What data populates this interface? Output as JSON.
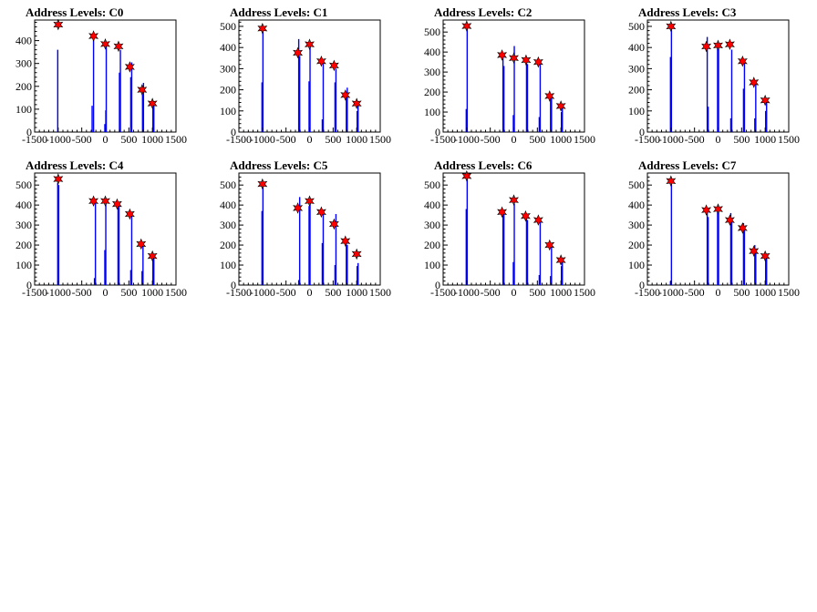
{
  "chart_data": [
    {
      "type": "bar",
      "title": "Address Levels: C0",
      "xlim": [
        -1500,
        1500
      ],
      "ylim": [
        0,
        490
      ],
      "xticks": [
        -1500,
        -1000,
        -500,
        0,
        500,
        1000,
        1500
      ],
      "yticks": [
        0,
        100,
        200,
        300,
        400
      ],
      "peaks": [
        {
          "x": -1000,
          "y": 470
        },
        {
          "x": -250,
          "y": 420
        },
        {
          "x": 0,
          "y": 385
        },
        {
          "x": 280,
          "y": 375
        },
        {
          "x": 520,
          "y": 285
        },
        {
          "x": 780,
          "y": 185
        },
        {
          "x": 1000,
          "y": 125
        }
      ],
      "bins": [
        {
          "x": -1010,
          "y": 360
        },
        {
          "x": -280,
          "y": 115
        },
        {
          "x": -250,
          "y": 410
        },
        {
          "x": -10,
          "y": 35
        },
        {
          "x": 10,
          "y": 95
        },
        {
          "x": 20,
          "y": 375
        },
        {
          "x": 300,
          "y": 260
        },
        {
          "x": 320,
          "y": 360
        },
        {
          "x": 540,
          "y": 240
        },
        {
          "x": 560,
          "y": 305
        },
        {
          "x": 790,
          "y": 165
        },
        {
          "x": 810,
          "y": 215
        },
        {
          "x": 1010,
          "y": 110
        },
        {
          "x": 1030,
          "y": 135
        }
      ]
    },
    {
      "type": "bar",
      "title": "Address Levels: C1",
      "xlim": [
        -1500,
        1500
      ],
      "ylim": [
        0,
        530
      ],
      "xticks": [
        -1500,
        -1000,
        -500,
        0,
        500,
        1000,
        1500
      ],
      "yticks": [
        0,
        100,
        200,
        300,
        400,
        500
      ],
      "peaks": [
        {
          "x": -1000,
          "y": 490
        },
        {
          "x": -250,
          "y": 375
        },
        {
          "x": 0,
          "y": 415
        },
        {
          "x": 250,
          "y": 335
        },
        {
          "x": 520,
          "y": 315
        },
        {
          "x": 760,
          "y": 175
        },
        {
          "x": 1000,
          "y": 135
        }
      ],
      "bins": [
        {
          "x": -1010,
          "y": 235
        },
        {
          "x": -990,
          "y": 480
        },
        {
          "x": -230,
          "y": 440
        },
        {
          "x": -210,
          "y": 360
        },
        {
          "x": -10,
          "y": 240
        },
        {
          "x": 10,
          "y": 420
        },
        {
          "x": 270,
          "y": 60
        },
        {
          "x": 290,
          "y": 335
        },
        {
          "x": 540,
          "y": 235
        },
        {
          "x": 560,
          "y": 300
        },
        {
          "x": 780,
          "y": 165
        },
        {
          "x": 800,
          "y": 210
        },
        {
          "x": 1010,
          "y": 100
        },
        {
          "x": 1030,
          "y": 125
        }
      ]
    },
    {
      "type": "bar",
      "title": "Address Levels: C2",
      "xlim": [
        -1500,
        1500
      ],
      "ylim": [
        0,
        560
      ],
      "xticks": [
        -1500,
        -1000,
        -500,
        0,
        500,
        1000,
        1500
      ],
      "yticks": [
        0,
        100,
        200,
        300,
        400,
        500
      ],
      "peaks": [
        {
          "x": -1000,
          "y": 530
        },
        {
          "x": -250,
          "y": 385
        },
        {
          "x": 0,
          "y": 370
        },
        {
          "x": 260,
          "y": 360
        },
        {
          "x": 520,
          "y": 350
        },
        {
          "x": 760,
          "y": 180
        },
        {
          "x": 1000,
          "y": 130
        }
      ],
      "bins": [
        {
          "x": -1010,
          "y": 115
        },
        {
          "x": -990,
          "y": 520
        },
        {
          "x": -230,
          "y": 380
        },
        {
          "x": -210,
          "y": 330
        },
        {
          "x": -10,
          "y": 85
        },
        {
          "x": 10,
          "y": 430
        },
        {
          "x": 270,
          "y": 370
        },
        {
          "x": 290,
          "y": 340
        },
        {
          "x": 540,
          "y": 75
        },
        {
          "x": 560,
          "y": 340
        },
        {
          "x": 780,
          "y": 165
        },
        {
          "x": 800,
          "y": 175
        },
        {
          "x": 1010,
          "y": 100
        },
        {
          "x": 1030,
          "y": 120
        }
      ]
    },
    {
      "type": "bar",
      "title": "Address Levels: C3",
      "xlim": [
        -1500,
        1500
      ],
      "ylim": [
        0,
        530
      ],
      "xticks": [
        -1500,
        -1000,
        -500,
        0,
        500,
        1000,
        1500
      ],
      "yticks": [
        0,
        100,
        200,
        300,
        400,
        500
      ],
      "peaks": [
        {
          "x": -1000,
          "y": 500
        },
        {
          "x": -250,
          "y": 405
        },
        {
          "x": 0,
          "y": 410
        },
        {
          "x": 250,
          "y": 415
        },
        {
          "x": 520,
          "y": 335
        },
        {
          "x": 760,
          "y": 235
        },
        {
          "x": 1000,
          "y": 150
        }
      ],
      "bins": [
        {
          "x": -1010,
          "y": 355
        },
        {
          "x": -990,
          "y": 490
        },
        {
          "x": -230,
          "y": 450
        },
        {
          "x": -210,
          "y": 120
        },
        {
          "x": -10,
          "y": 400
        },
        {
          "x": 10,
          "y": 395
        },
        {
          "x": 270,
          "y": 65
        },
        {
          "x": 290,
          "y": 390
        },
        {
          "x": 540,
          "y": 205
        },
        {
          "x": 560,
          "y": 330
        },
        {
          "x": 780,
          "y": 65
        },
        {
          "x": 800,
          "y": 225
        },
        {
          "x": 1010,
          "y": 100
        },
        {
          "x": 1030,
          "y": 140
        }
      ]
    },
    {
      "type": "bar",
      "title": "Address Levels: C4",
      "xlim": [
        -1500,
        1500
      ],
      "ylim": [
        0,
        560
      ],
      "xticks": [
        -1500,
        -1000,
        -500,
        0,
        500,
        1000,
        1500
      ],
      "yticks": [
        0,
        100,
        200,
        300,
        400,
        500
      ],
      "peaks": [
        {
          "x": -1000,
          "y": 530
        },
        {
          "x": -250,
          "y": 420
        },
        {
          "x": 0,
          "y": 420
        },
        {
          "x": 250,
          "y": 405
        },
        {
          "x": 520,
          "y": 355
        },
        {
          "x": 760,
          "y": 205
        },
        {
          "x": 1000,
          "y": 145
        }
      ],
      "bins": [
        {
          "x": -1010,
          "y": 510
        },
        {
          "x": -990,
          "y": 500
        },
        {
          "x": -230,
          "y": 35
        },
        {
          "x": -210,
          "y": 415
        },
        {
          "x": -10,
          "y": 175
        },
        {
          "x": 10,
          "y": 410
        },
        {
          "x": 270,
          "y": 390
        },
        {
          "x": 290,
          "y": 400
        },
        {
          "x": 540,
          "y": 75
        },
        {
          "x": 560,
          "y": 360
        },
        {
          "x": 780,
          "y": 70
        },
        {
          "x": 800,
          "y": 200
        },
        {
          "x": 1010,
          "y": 140
        },
        {
          "x": 1030,
          "y": 155
        }
      ]
    },
    {
      "type": "bar",
      "title": "Address Levels: C5",
      "xlim": [
        -1500,
        1500
      ],
      "ylim": [
        0,
        560
      ],
      "xticks": [
        -1500,
        -1000,
        -500,
        0,
        500,
        1000,
        1500
      ],
      "yticks": [
        0,
        100,
        200,
        300,
        400,
        500
      ],
      "peaks": [
        {
          "x": -1000,
          "y": 505
        },
        {
          "x": -250,
          "y": 385
        },
        {
          "x": 0,
          "y": 420
        },
        {
          "x": 250,
          "y": 365
        },
        {
          "x": 520,
          "y": 305
        },
        {
          "x": 760,
          "y": 220
        },
        {
          "x": 1000,
          "y": 155
        }
      ],
      "bins": [
        {
          "x": -1010,
          "y": 370
        },
        {
          "x": -990,
          "y": 515
        },
        {
          "x": -230,
          "y": 25
        },
        {
          "x": -210,
          "y": 440
        },
        {
          "x": -10,
          "y": 395
        },
        {
          "x": 10,
          "y": 415
        },
        {
          "x": 270,
          "y": 210
        },
        {
          "x": 290,
          "y": 355
        },
        {
          "x": 540,
          "y": 100
        },
        {
          "x": 560,
          "y": 355
        },
        {
          "x": 780,
          "y": 210
        },
        {
          "x": 800,
          "y": 200
        },
        {
          "x": 1010,
          "y": 95
        },
        {
          "x": 1030,
          "y": 110
        }
      ]
    },
    {
      "type": "bar",
      "title": "Address Levels: C6",
      "xlim": [
        -1500,
        1500
      ],
      "ylim": [
        0,
        560
      ],
      "xticks": [
        -1500,
        -1000,
        -500,
        0,
        500,
        1000,
        1500
      ],
      "yticks": [
        0,
        100,
        200,
        300,
        400,
        500
      ],
      "peaks": [
        {
          "x": -1000,
          "y": 545
        },
        {
          "x": -250,
          "y": 365
        },
        {
          "x": 0,
          "y": 425
        },
        {
          "x": 250,
          "y": 345
        },
        {
          "x": 520,
          "y": 325
        },
        {
          "x": 760,
          "y": 200
        },
        {
          "x": 1000,
          "y": 125
        }
      ],
      "bins": [
        {
          "x": -1010,
          "y": 380
        },
        {
          "x": -990,
          "y": 530
        },
        {
          "x": -230,
          "y": 370
        },
        {
          "x": -210,
          "y": 360
        },
        {
          "x": -10,
          "y": 115
        },
        {
          "x": 10,
          "y": 405
        },
        {
          "x": 270,
          "y": 355
        },
        {
          "x": 290,
          "y": 325
        },
        {
          "x": 540,
          "y": 50
        },
        {
          "x": 560,
          "y": 320
        },
        {
          "x": 780,
          "y": 45
        },
        {
          "x": 800,
          "y": 200
        },
        {
          "x": 1010,
          "y": 95
        },
        {
          "x": 1030,
          "y": 115
        }
      ]
    },
    {
      "type": "bar",
      "title": "Address Levels: C7",
      "xlim": [
        -1500,
        1500
      ],
      "ylim": [
        0,
        560
      ],
      "xticks": [
        -1500,
        -1000,
        -500,
        0,
        500,
        1000,
        1500
      ],
      "yticks": [
        0,
        100,
        200,
        300,
        400,
        500
      ],
      "peaks": [
        {
          "x": -1000,
          "y": 520
        },
        {
          "x": -250,
          "y": 375
        },
        {
          "x": 0,
          "y": 380
        },
        {
          "x": 250,
          "y": 325
        },
        {
          "x": 520,
          "y": 285
        },
        {
          "x": 760,
          "y": 170
        },
        {
          "x": 1000,
          "y": 145
        }
      ],
      "bins": [
        {
          "x": -1010,
          "y": 20
        },
        {
          "x": -990,
          "y": 510
        },
        {
          "x": -230,
          "y": 370
        },
        {
          "x": -210,
          "y": 340
        },
        {
          "x": -10,
          "y": 390
        },
        {
          "x": 10,
          "y": 365
        },
        {
          "x": 270,
          "y": 360
        },
        {
          "x": 290,
          "y": 330
        },
        {
          "x": 540,
          "y": 310
        },
        {
          "x": 560,
          "y": 280
        },
        {
          "x": 780,
          "y": 200
        },
        {
          "x": 800,
          "y": 165
        },
        {
          "x": 1010,
          "y": 145
        },
        {
          "x": 1030,
          "y": 135
        }
      ]
    }
  ],
  "colors": {
    "bars": "#0000ff",
    "peak_marker": "#ff0000",
    "axes": "#000000"
  }
}
